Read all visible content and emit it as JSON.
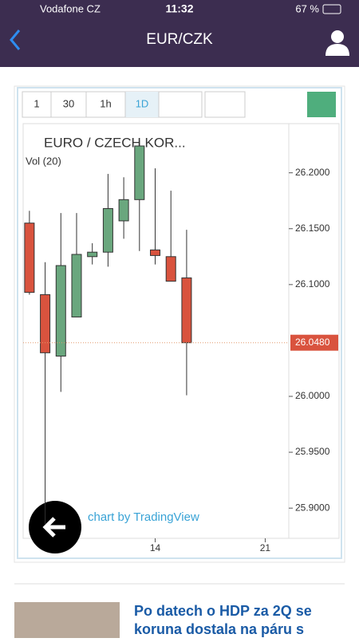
{
  "status_bar": {
    "carrier": "Vodafone CZ",
    "time": "11:32",
    "battery": "67 %"
  },
  "nav": {
    "title": "EUR/CZK"
  },
  "toolbar": {
    "buttons": [
      "1",
      "30",
      "1h",
      "1D"
    ]
  },
  "legend": {
    "symbol": "EURO / CZECH KOR...",
    "volume": "Vol (20)"
  },
  "watermark": "chart by TradingView",
  "chart_data": {
    "type": "candlestick",
    "x": [
      6,
      7,
      8,
      9,
      10,
      11,
      12,
      13,
      14,
      15,
      16
    ],
    "open": [
      26.155,
      26.091,
      26.036,
      26.071,
      26.125,
      26.129,
      26.157,
      26.176,
      26.131,
      26.125,
      26.106
    ],
    "close": [
      26.093,
      26.039,
      26.117,
      26.127,
      26.129,
      26.168,
      26.176,
      26.224,
      26.126,
      26.103,
      26.048
    ],
    "high": [
      26.166,
      26.12,
      26.164,
      26.164,
      26.137,
      26.199,
      26.196,
      26.229,
      26.204,
      26.184,
      26.149
    ],
    "low": [
      26.091,
      25.885,
      26.004,
      26.071,
      26.118,
      26.116,
      26.141,
      26.13,
      26.118,
      26.103,
      26.001
    ],
    "up_color": "#6aa77e",
    "down_color": "#d9533e",
    "xlim": [
      5.6,
      22.5
    ],
    "xticks": [
      14,
      21
    ],
    "ylim": [
      25.873,
      26.244
    ],
    "yticks": [
      {
        "value": 26.2,
        "label": "26.2000"
      },
      {
        "value": 26.15,
        "label": "26.1500"
      },
      {
        "value": 26.1,
        "label": "26.1000"
      },
      {
        "value": 26.0,
        "label": "26.0000"
      },
      {
        "value": 25.95,
        "label": "25.9500"
      },
      {
        "value": 25.9,
        "label": "25.9000"
      }
    ],
    "last_price": {
      "value": 26.048,
      "label": "26.0480"
    }
  },
  "news": {
    "headline": "Po datech o HDP za 2Q se koruna dostala na páru s"
  }
}
